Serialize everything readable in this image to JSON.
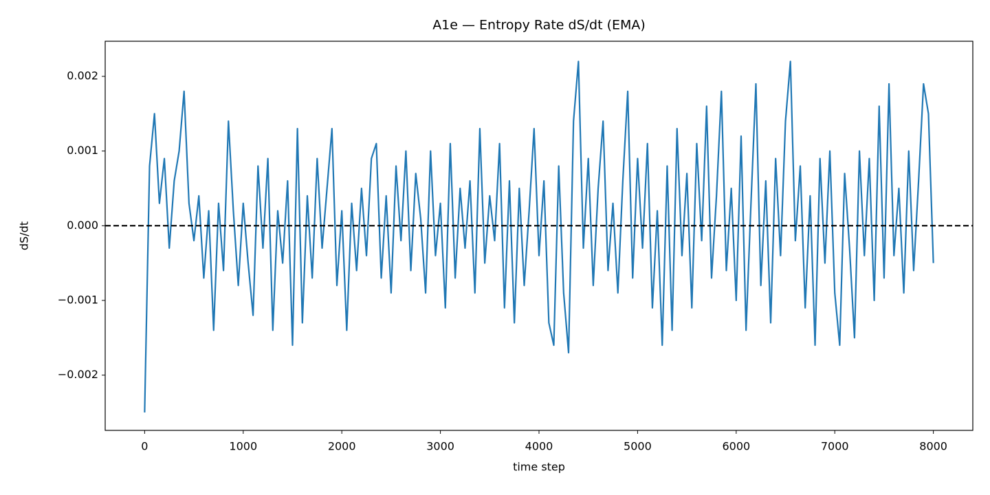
{
  "chart_data": {
    "type": "line",
    "title": "A1e — Entropy Rate dS/dt (EMA)",
    "x_label": "time step",
    "y_label": "dS/dt",
    "x": [
      0,
      50,
      100,
      150,
      200,
      250,
      300,
      350,
      400,
      450,
      500,
      550,
      600,
      650,
      700,
      750,
      800,
      850,
      900,
      950,
      1000,
      1050,
      1100,
      1150,
      1200,
      1250,
      1300,
      1350,
      1400,
      1450,
      1500,
      1550,
      1600,
      1650,
      1700,
      1750,
      1800,
      1850,
      1900,
      1950,
      2000,
      2050,
      2100,
      2150,
      2200,
      2250,
      2300,
      2350,
      2400,
      2450,
      2500,
      2550,
      2600,
      2650,
      2700,
      2750,
      2800,
      2850,
      2900,
      2950,
      3000,
      3050,
      3100,
      3150,
      3200,
      3250,
      3300,
      3350,
      3400,
      3450,
      3500,
      3550,
      3600,
      3650,
      3700,
      3750,
      3800,
      3850,
      3900,
      3950,
      4000,
      4050,
      4100,
      4150,
      4200,
      4250,
      4300,
      4350,
      4400,
      4450,
      4500,
      4550,
      4600,
      4650,
      4700,
      4750,
      4800,
      4850,
      4900,
      4950,
      5000,
      5050,
      5100,
      5150,
      5200,
      5250,
      5300,
      5350,
      5400,
      5450,
      5500,
      5550,
      5600,
      5650,
      5700,
      5750,
      5800,
      5850,
      5900,
      5950,
      6000,
      6050,
      6100,
      6150,
      6200,
      6250,
      6300,
      6350,
      6400,
      6450,
      6500,
      6550,
      6600,
      6650,
      6700,
      6750,
      6800,
      6850,
      6900,
      6950,
      7000,
      7050,
      7100,
      7150,
      7200,
      7250,
      7300,
      7350,
      7400,
      7450,
      7500,
      7550,
      7600,
      7650,
      7700,
      7750,
      7800,
      7850,
      7900,
      7950,
      8000
    ],
    "series": [
      {
        "color": "#1f77b4",
        "values": [
          -0.0025,
          0.0008,
          0.0015,
          0.0003,
          0.0009,
          -0.0003,
          0.0006,
          0.001,
          0.0018,
          0.0003,
          -0.0002,
          0.0004,
          -0.0007,
          0.0002,
          -0.0014,
          0.0003,
          -0.0006,
          0.0014,
          0.0002,
          -0.0008,
          0.0003,
          -0.0005,
          -0.0012,
          0.0008,
          -0.0003,
          0.0009,
          -0.0014,
          0.0002,
          -0.0005,
          0.0006,
          -0.0016,
          0.0013,
          -0.0013,
          0.0004,
          -0.0007,
          0.0009,
          -0.0003,
          0.0005,
          0.0013,
          -0.0008,
          0.0002,
          -0.0014,
          0.0003,
          -0.0006,
          0.0005,
          -0.0004,
          0.0009,
          0.0011,
          -0.0007,
          0.0004,
          -0.0009,
          0.0008,
          -0.0002,
          0.001,
          -0.0006,
          0.0007,
          0.0001,
          -0.0009,
          0.001,
          -0.0004,
          0.0003,
          -0.0011,
          0.0011,
          -0.0007,
          0.0005,
          -0.0003,
          0.0006,
          -0.0009,
          0.0013,
          -0.0005,
          0.0004,
          -0.0002,
          0.0011,
          -0.0011,
          0.0006,
          -0.0013,
          0.0005,
          -0.0008,
          0.0002,
          0.0013,
          -0.0004,
          0.0006,
          -0.0013,
          -0.0016,
          0.0008,
          -0.0009,
          -0.0017,
          0.0014,
          0.0022,
          -0.0003,
          0.0009,
          -0.0008,
          0.0005,
          0.0014,
          -0.0006,
          0.0003,
          -0.0009,
          0.0006,
          0.0018,
          -0.0007,
          0.0009,
          -0.0003,
          0.0011,
          -0.0011,
          0.0002,
          -0.0016,
          0.0008,
          -0.0014,
          0.0013,
          -0.0004,
          0.0007,
          -0.0011,
          0.0011,
          -0.0002,
          0.0016,
          -0.0007,
          0.0004,
          0.0018,
          -0.0006,
          0.0005,
          -0.001,
          0.0012,
          -0.0014,
          0.0003,
          0.0019,
          -0.0008,
          0.0006,
          -0.0013,
          0.0009,
          -0.0004,
          0.0014,
          0.0022,
          -0.0002,
          0.0008,
          -0.0011,
          0.0004,
          -0.0016,
          0.0009,
          -0.0005,
          0.001,
          -0.0009,
          -0.0016,
          0.0007,
          -0.0003,
          -0.0015,
          0.001,
          -0.0004,
          0.0009,
          -0.001,
          0.0016,
          -0.0007,
          0.0019,
          -0.0004,
          0.0005,
          -0.0009,
          0.001,
          -0.0006,
          0.0006,
          0.0019,
          0.0015,
          -0.0005
        ]
      }
    ],
    "reference_line": {
      "y": 0,
      "color": "#000000",
      "style": "dashed"
    },
    "xlim": [
      -400,
      8400
    ],
    "xticks": [
      0,
      1000,
      2000,
      3000,
      4000,
      5000,
      6000,
      7000,
      8000
    ],
    "ylim": [
      -0.00274,
      0.00247
    ],
    "yticks": [
      {
        "value": -0.002,
        "label": "−0.002"
      },
      {
        "value": -0.001,
        "label": "−0.001"
      },
      {
        "value": 0,
        "label": "0.000"
      },
      0.001,
      0.002
    ]
  }
}
